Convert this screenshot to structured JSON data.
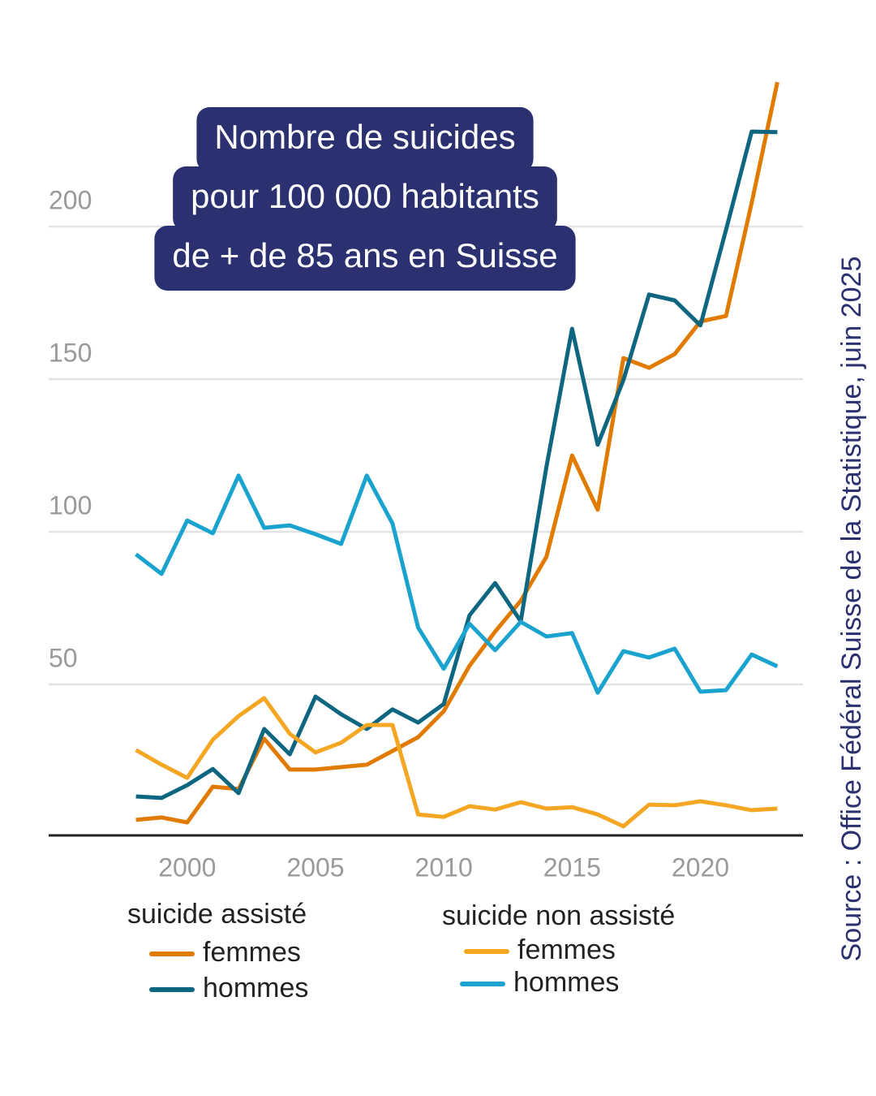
{
  "chart_data": {
    "type": "line",
    "title": [
      "Nombre de suicides",
      "pour 100 000 habitants",
      "de + de 85 ans en Suisse"
    ],
    "source": "Source : Office Fédéral Suisse de la Statistique, juin 2025",
    "x": [
      1998,
      1999,
      2000,
      2001,
      2002,
      2003,
      2004,
      2005,
      2006,
      2007,
      2008,
      2009,
      2010,
      2011,
      2012,
      2013,
      2014,
      2015,
      2016,
      2017,
      2018,
      2019,
      2020,
      2021,
      2022,
      2023
    ],
    "xlim": [
      1994.6,
      2024
    ],
    "xticks": [
      2000,
      2005,
      2010,
      2015,
      2020
    ],
    "ylim": [
      0,
      250
    ],
    "yticks": [
      50,
      100,
      150,
      200
    ],
    "grid": true,
    "series": [
      {
        "group": "suicide assisté",
        "name": "femmes",
        "color": "#e07b00",
        "values": [
          5.6,
          6.4,
          4.8,
          16.5,
          15.7,
          32.2,
          22.1,
          22.1,
          22.9,
          23.7,
          28.2,
          32.7,
          41.2,
          56.1,
          67.3,
          77.4,
          91.8,
          125.0,
          107.2,
          156.9,
          153.7,
          158.2,
          168.9,
          170.7,
          207.7,
          247.3
        ]
      },
      {
        "group": "suicide assisté",
        "name": "hommes",
        "color": "#0f6680",
        "values": [
          13.3,
          12.8,
          17.0,
          22.3,
          14.4,
          35.4,
          27.1,
          46.0,
          40.2,
          35.4,
          41.8,
          37.5,
          43.6,
          72.6,
          83.2,
          70.7,
          121.3,
          166.5,
          128.5,
          149.7,
          177.7,
          175.8,
          167.6,
          198.9,
          231.1,
          230.9
        ]
      },
      {
        "group": "suicide non assisté",
        "name": "femmes",
        "color": "#f5a623",
        "values": [
          28.5,
          23.7,
          19.4,
          31.9,
          39.6,
          45.5,
          33.8,
          27.7,
          30.9,
          36.7,
          36.7,
          7.4,
          6.6,
          10.1,
          9.0,
          11.4,
          9.3,
          9.8,
          7.4,
          3.5,
          10.6,
          10.4,
          11.7,
          10.4,
          8.8,
          9.3
        ]
      },
      {
        "group": "suicide non assisté",
        "name": "hommes",
        "color": "#1aa3cf",
        "values": [
          92.6,
          86.2,
          103.7,
          99.5,
          118.4,
          101.3,
          102.1,
          99.2,
          96.0,
          118.4,
          102.7,
          68.6,
          55.1,
          69.9,
          61.2,
          70.5,
          65.7,
          66.8,
          47.3,
          60.9,
          58.8,
          61.7,
          47.6,
          48.1,
          59.8,
          55.9
        ]
      }
    ]
  }
}
